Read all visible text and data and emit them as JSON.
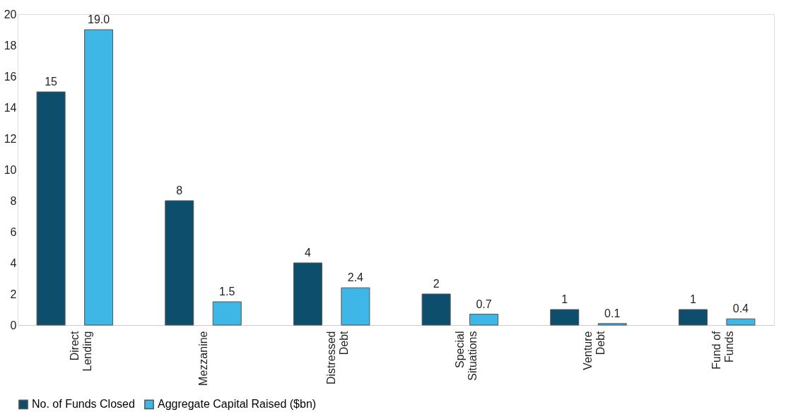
{
  "chart_data": {
    "type": "bar",
    "categories": [
      "Direct\nLending",
      "Mezzanine",
      "Distressed\nDebt",
      "Special\nSituations",
      "Venture\nDebt",
      "Fund of\nFunds"
    ],
    "series": [
      {
        "name": "No. of Funds Closed",
        "color": "#0e4e6d",
        "values": [
          15,
          8,
          4,
          2,
          1,
          1
        ],
        "value_labels": [
          "15",
          "8",
          "4",
          "2",
          "1",
          "1"
        ]
      },
      {
        "name": "Aggregate Capital Raised ($bn)",
        "color": "#3eb6e6",
        "values": [
          19.0,
          1.5,
          2.4,
          0.7,
          0.1,
          0.4
        ],
        "value_labels": [
          "19.0",
          "1.5",
          "2.4",
          "0.7",
          "0.1",
          "0.4"
        ]
      }
    ],
    "ylim": [
      0,
      20
    ],
    "yticks": [
      0,
      2,
      4,
      6,
      8,
      10,
      12,
      14,
      16,
      18,
      20
    ],
    "grid": false,
    "legend": "bottom"
  }
}
